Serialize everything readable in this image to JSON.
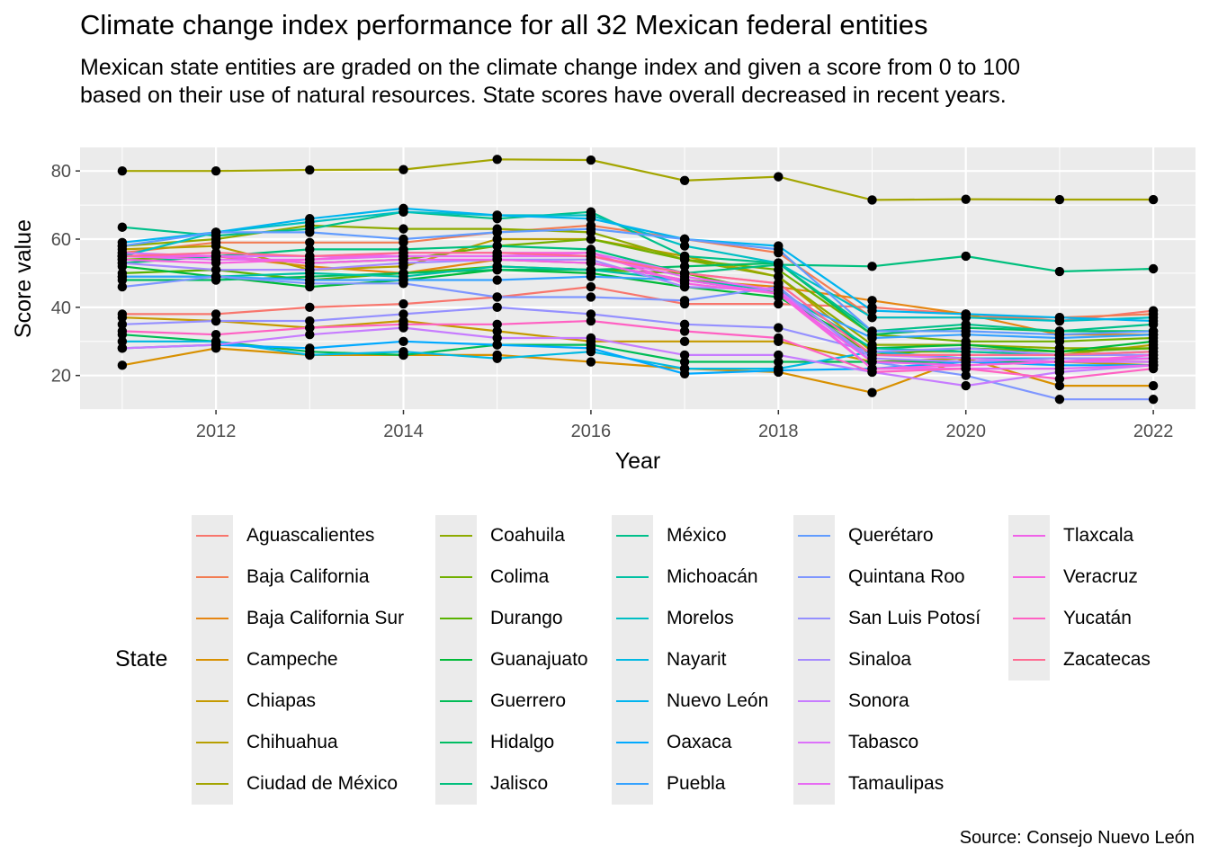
{
  "title": "Climate change index performance for all 32 Mexican federal entities",
  "subtitle": "Mexican state entities are graded on the climate change index and given a score from 0 to 100 based on their use of natural resources. State scores have overall decreased in recent years.",
  "caption": "Source: Consejo Nuevo León",
  "legend_title": "State",
  "chart_data": {
    "type": "line",
    "title": "Climate change index performance for all 32 Mexican federal entities",
    "xlabel": "Year",
    "ylabel": "Score value",
    "xlim": [
      2010.55,
      2022.45
    ],
    "ylim": [
      9.9,
      86.9
    ],
    "x": [
      2011,
      2012,
      2013,
      2014,
      2015,
      2016,
      2017,
      2018,
      2019,
      2020,
      2021,
      2022
    ],
    "x_ticks": [
      2012,
      2014,
      2016,
      2018,
      2020,
      2022
    ],
    "y_ticks": [
      20,
      40,
      60,
      80
    ],
    "grid": true,
    "legend_position": "bottom",
    "series": [
      {
        "name": "Aguascalientes",
        "color": "#F8766D",
        "values": [
          38,
          38,
          40,
          41,
          43,
          46,
          41,
          41,
          40,
          38,
          36,
          39
        ]
      },
      {
        "name": "Baja California",
        "color": "#F27D53",
        "values": [
          56,
          59,
          59,
          59,
          62,
          64,
          60,
          56,
          37,
          37,
          37,
          38
        ]
      },
      {
        "name": "Baja California Sur",
        "color": "#E68613",
        "values": [
          55,
          55,
          52,
          50,
          54,
          53,
          48,
          46,
          42,
          38,
          32,
          32
        ]
      },
      {
        "name": "Campeche",
        "color": "#D89000",
        "values": [
          23,
          28,
          26,
          26,
          26,
          24,
          22,
          21,
          15,
          25,
          17,
          17
        ]
      },
      {
        "name": "Chiapas",
        "color": "#C59A00",
        "values": [
          37,
          36,
          34,
          36,
          33,
          30,
          30,
          30,
          24,
          25,
          24,
          23
        ]
      },
      {
        "name": "Chihuahua",
        "color": "#B79F00",
        "values": [
          57,
          58,
          51,
          52,
          60,
          60,
          55,
          49,
          27,
          27,
          26,
          29
        ]
      },
      {
        "name": "Ciudad de México",
        "color": "#A3A500",
        "values": [
          80,
          80,
          80.3,
          80.4,
          83.4,
          83.2,
          77.2,
          78.3,
          71.5,
          71.7,
          71.6,
          71.6
        ]
      },
      {
        "name": "Coahuila",
        "color": "#8EAB00",
        "values": [
          58,
          60,
          64,
          63,
          63,
          62,
          54,
          49,
          29,
          29,
          28,
          28
        ]
      },
      {
        "name": "Colima",
        "color": "#72B000",
        "values": [
          54,
          55,
          53,
          54,
          58,
          60,
          54,
          51,
          32,
          30,
          30,
          31
        ]
      },
      {
        "name": "Durango",
        "color": "#59B300",
        "values": [
          50,
          51,
          48,
          50,
          52,
          51,
          50,
          44,
          26,
          28,
          27,
          28
        ]
      },
      {
        "name": "Guanajuato",
        "color": "#00BA38",
        "values": [
          52,
          49,
          46,
          48,
          51,
          50,
          46,
          43,
          28,
          29,
          27,
          30
        ]
      },
      {
        "name": "Guerrero",
        "color": "#00BC56",
        "values": [
          32,
          30,
          27,
          26,
          29,
          29,
          24,
          24,
          24,
          24,
          24,
          24
        ]
      },
      {
        "name": "Hidalgo",
        "color": "#00BD62",
        "values": [
          48,
          48,
          49,
          50,
          51,
          51,
          52,
          53,
          32,
          34,
          33,
          33
        ]
      },
      {
        "name": "Jalisco",
        "color": "#00BF7D",
        "values": [
          53,
          55,
          57,
          57,
          58,
          57,
          50,
          52.5,
          52,
          55,
          50.5,
          51.3
        ]
      },
      {
        "name": "México",
        "color": "#00C08B",
        "values": [
          63.5,
          61,
          63,
          68,
          66,
          68,
          55,
          53,
          33,
          35,
          33,
          35
        ]
      },
      {
        "name": "Michoacán",
        "color": "#00C1A3",
        "values": [
          49,
          49,
          50,
          49,
          52,
          51,
          48,
          45,
          28,
          27,
          26,
          27
        ]
      },
      {
        "name": "Morelos",
        "color": "#00BFC4",
        "values": [
          55,
          62,
          65,
          68,
          67,
          67,
          58,
          53,
          37,
          37,
          36,
          37
        ]
      },
      {
        "name": "Nayarit",
        "color": "#00B9E3",
        "values": [
          30,
          30,
          26,
          27,
          25,
          27,
          22,
          22,
          27,
          25,
          25,
          25
        ]
      },
      {
        "name": "Nuevo León",
        "color": "#00B4EF",
        "values": [
          59,
          62,
          66,
          69,
          67,
          66,
          60,
          58,
          39,
          38,
          37,
          36
        ]
      },
      {
        "name": "Oaxaca",
        "color": "#00A9FF",
        "values": [
          28,
          29,
          28,
          30,
          29,
          28,
          20.5,
          21.5,
          22,
          24,
          23,
          23
        ]
      },
      {
        "name": "Puebla",
        "color": "#35A2FF",
        "values": [
          49,
          49,
          48,
          48,
          48,
          49,
          48,
          44,
          31,
          32,
          31,
          32
        ]
      },
      {
        "name": "Querétaro",
        "color": "#619CFF",
        "values": [
          58,
          62,
          62,
          60,
          62,
          63,
          60,
          57,
          33,
          33,
          32,
          33
        ]
      },
      {
        "name": "Quintana Roo",
        "color": "#7E96FF",
        "values": [
          46,
          49,
          47,
          47,
          43,
          43,
          42,
          46,
          24,
          20,
          13,
          13
        ]
      },
      {
        "name": "San Luis Potosí",
        "color": "#9590FF",
        "values": [
          35,
          36,
          36,
          38,
          40,
          38,
          35,
          34,
          27,
          28,
          26,
          26
        ]
      },
      {
        "name": "Sinaloa",
        "color": "#A58AFF",
        "values": [
          53,
          51,
          51,
          53,
          54,
          54,
          46,
          45,
          25,
          24,
          25,
          25
        ]
      },
      {
        "name": "Sonora",
        "color": "#C77CFF",
        "values": [
          28,
          29,
          32,
          34,
          31,
          31,
          26,
          26,
          21,
          17,
          21,
          23
        ]
      },
      {
        "name": "Tabasco",
        "color": "#DC71FA",
        "values": [
          56,
          55,
          55,
          55,
          55,
          56,
          50,
          47,
          26,
          25,
          24,
          24
        ]
      },
      {
        "name": "Tamaulipas",
        "color": "#E76BF3",
        "values": [
          55,
          54,
          54,
          55,
          55,
          55,
          49,
          45,
          22,
          22,
          22,
          23
        ]
      },
      {
        "name": "Tlaxcala",
        "color": "#F062E8",
        "values": [
          55,
          55,
          53,
          54,
          54,
          53,
          48,
          44,
          24,
          23,
          24,
          25
        ]
      },
      {
        "name": "Veracruz",
        "color": "#F763E0",
        "values": [
          54,
          53,
          54,
          56,
          56,
          56,
          47,
          44,
          22,
          23,
          24,
          26
        ]
      },
      {
        "name": "Yucatán",
        "color": "#FF61C3",
        "values": [
          33,
          32,
          34,
          35,
          35,
          36,
          33,
          31,
          21,
          22,
          19,
          22
        ]
      },
      {
        "name": "Zacatecas",
        "color": "#FF6C91",
        "values": [
          55,
          56,
          55,
          56,
          56,
          55,
          50,
          47,
          26,
          26,
          26,
          27
        ]
      }
    ]
  }
}
